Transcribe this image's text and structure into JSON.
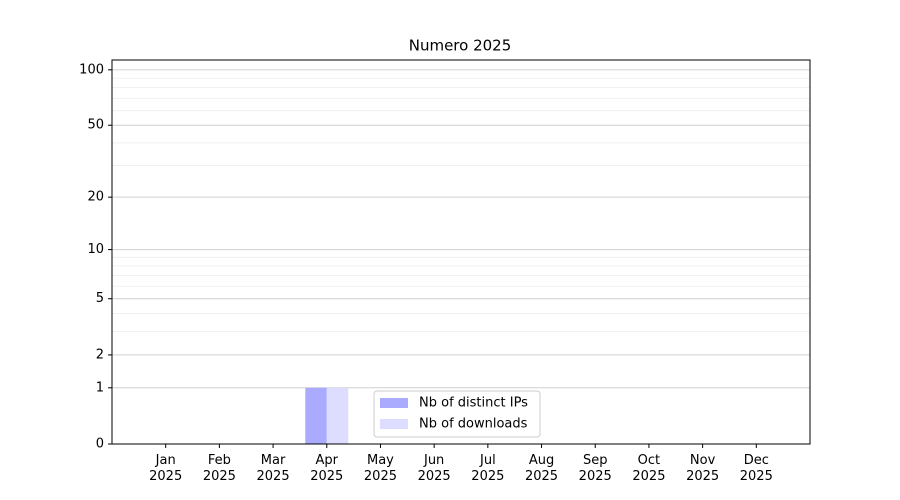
{
  "chart_data": {
    "type": "bar",
    "title": "Numero 2025",
    "categories": [
      "Jan 2025",
      "Feb 2025",
      "Mar 2025",
      "Apr 2025",
      "May 2025",
      "Jun 2025",
      "Jul 2025",
      "Aug 2025",
      "Sep 2025",
      "Oct 2025",
      "Nov 2025",
      "Dec 2025"
    ],
    "series": [
      {
        "name": "Nb of distinct IPs",
        "color": "#aaaaff",
        "values": [
          0,
          0,
          0,
          1,
          0,
          0,
          0,
          0,
          0,
          0,
          0,
          0
        ]
      },
      {
        "name": "Nb of downloads",
        "color": "#ddddff",
        "values": [
          0,
          0,
          0,
          1,
          0,
          0,
          0,
          0,
          0,
          0,
          0,
          0
        ]
      }
    ],
    "yscale": "log1p",
    "ylim": [
      0,
      113
    ],
    "yticks": [
      0,
      1,
      2,
      5,
      10,
      20,
      50,
      100
    ],
    "yminorticks": [
      3,
      4,
      6,
      7,
      8,
      9,
      30,
      40,
      60,
      70,
      80,
      90
    ],
    "grid": true,
    "legend": "lower center"
  }
}
